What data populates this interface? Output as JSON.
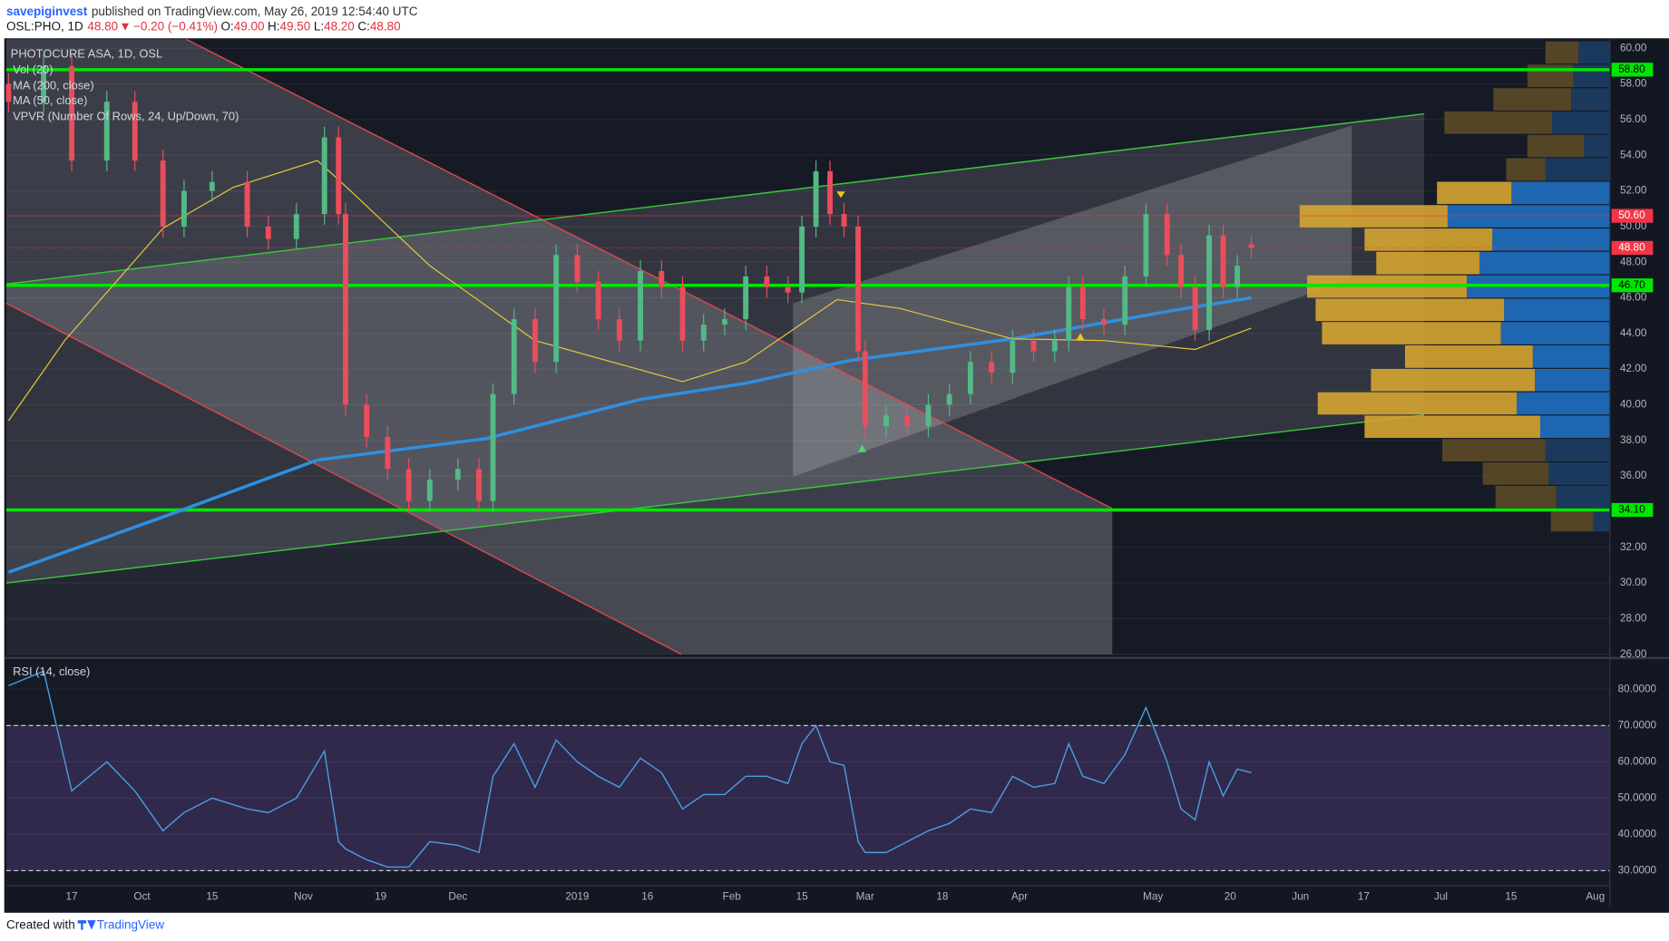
{
  "header": {
    "user": "savepiginvest",
    "published": "published on TradingView.com, May 26, 2019 12:54:40 UTC",
    "symbol": "OSL:PHO, 1D",
    "last": "48.80",
    "direction": "▼",
    "change": "−0.20 (−0.41%)",
    "ohlc": [
      [
        "O:",
        "49.00"
      ],
      [
        "H:",
        "49.50"
      ],
      [
        "L:",
        "48.20"
      ],
      [
        "C:",
        "48.80"
      ]
    ]
  },
  "footer": {
    "created": "Created with",
    "brand": "TradingView"
  },
  "chart_data": [
    {
      "type": "candlestick",
      "title": "PHOTOCURE ASA, 1D, OSL",
      "volume_label": "Vol (20)",
      "up_color": "#53b987",
      "down_color": "#eb4d5c",
      "xlim": [
        0,
        228
      ],
      "xticks": [
        {
          "value": 9,
          "label": "17"
        },
        {
          "value": 19,
          "label": "Oct"
        },
        {
          "value": 29,
          "label": "15"
        },
        {
          "value": 42,
          "label": "Nov"
        },
        {
          "value": 53,
          "label": "19"
        },
        {
          "value": 64,
          "label": "Dec"
        },
        {
          "value": 81,
          "label": "2019"
        },
        {
          "value": 91,
          "label": "16"
        },
        {
          "value": 103,
          "label": "Feb"
        },
        {
          "value": 113,
          "label": "15"
        },
        {
          "value": 122,
          "label": "Mar"
        },
        {
          "value": 133,
          "label": "18"
        },
        {
          "value": 144,
          "label": "Apr"
        },
        {
          "value": 163,
          "label": "May"
        },
        {
          "value": 174,
          "label": "20"
        },
        {
          "value": 184,
          "label": "Jun"
        },
        {
          "value": 193,
          "label": "17"
        },
        {
          "value": 204,
          "label": "Jul"
        },
        {
          "value": 214,
          "label": "15"
        },
        {
          "value": 226,
          "label": "Aug"
        }
      ],
      "ylim": [
        26,
        60.5
      ],
      "yticks": [
        {
          "value": 26,
          "label": "26.00"
        },
        {
          "value": 28,
          "label": "28.00"
        },
        {
          "value": 30,
          "label": "30.00"
        },
        {
          "value": 32,
          "label": "32.00"
        },
        {
          "value": 34,
          "label": "34.00"
        },
        {
          "value": 36,
          "label": "36.00"
        },
        {
          "value": 38,
          "label": "38.00"
        },
        {
          "value": 40,
          "label": "40.00"
        },
        {
          "value": 42,
          "label": "42.00"
        },
        {
          "value": 44,
          "label": "44.00"
        },
        {
          "value": 46,
          "label": "46.00"
        },
        {
          "value": 48,
          "label": "48.00"
        },
        {
          "value": 50,
          "label": "50.00"
        },
        {
          "value": 52,
          "label": "52.00"
        },
        {
          "value": 54,
          "label": "54.00"
        },
        {
          "value": 56,
          "label": "56.00"
        },
        {
          "value": 58,
          "label": "58.00"
        },
        {
          "value": 60,
          "label": "60.00"
        }
      ],
      "grid": true,
      "x": [
        0,
        5,
        9,
        14,
        18,
        22,
        25,
        29,
        34,
        37,
        41,
        45,
        47,
        48,
        51,
        54,
        57,
        60,
        64,
        67,
        69,
        72,
        75,
        78,
        81,
        84,
        87,
        90,
        93,
        96,
        99,
        102,
        105,
        108,
        111,
        113,
        115,
        117,
        119,
        121,
        122,
        125,
        128,
        131,
        134,
        137,
        140,
        143,
        146,
        149,
        151,
        153,
        156,
        159,
        162,
        165,
        167,
        169,
        171,
        173,
        175,
        177
      ],
      "open": [
        58,
        57,
        59,
        53.7,
        57,
        53.7,
        50,
        52,
        52.5,
        50,
        49.3,
        50.7,
        55,
        50.7,
        40,
        38.2,
        36.4,
        34.6,
        35.8,
        36.4,
        34.6,
        40.6,
        44.8,
        42.4,
        48.4,
        46.9,
        44.8,
        43.6,
        47.5,
        46.6,
        43.6,
        44.5,
        44.8,
        47.2,
        46.6,
        46.3,
        50,
        53.1,
        50.7,
        50,
        43,
        38.8,
        39.4,
        38.8,
        40,
        40.6,
        42.4,
        41.8,
        43.6,
        43,
        43.6,
        46.6,
        44.8,
        44.5,
        47.2,
        50.7,
        48.4,
        46.6,
        44.2,
        49.5,
        46.6,
        49
      ],
      "high": [
        58.6,
        59.6,
        59.6,
        57.6,
        57.6,
        54.3,
        52.6,
        53.1,
        53.1,
        50.6,
        51.3,
        55.6,
        55.6,
        51.3,
        40.6,
        38.8,
        37,
        36.4,
        37,
        37,
        41.2,
        45.4,
        45.4,
        49,
        49,
        47.5,
        45.4,
        48.1,
        48.1,
        47.2,
        45.1,
        45.4,
        47.8,
        47.8,
        47.2,
        50.6,
        53.7,
        53.7,
        51.3,
        50.6,
        43.6,
        40,
        40,
        40.6,
        41.2,
        43,
        43,
        44.2,
        44.2,
        44.2,
        47.2,
        47.2,
        45.4,
        47.8,
        51.3,
        51.3,
        49,
        47.2,
        50.1,
        50.1,
        48.4,
        49.5
      ],
      "low": [
        56.4,
        56.4,
        53.1,
        53.1,
        53.1,
        49.4,
        49.4,
        51.4,
        49.4,
        48.7,
        48.7,
        50.1,
        50.1,
        39.4,
        37.6,
        35.8,
        34,
        34,
        35.2,
        34,
        34,
        40,
        41.8,
        41.8,
        46.3,
        44.2,
        43,
        43,
        46,
        43,
        43,
        43.9,
        44.2,
        46,
        45.7,
        45.7,
        49.4,
        50.1,
        49.4,
        42.4,
        38.2,
        38.2,
        38.2,
        38.2,
        39.4,
        40,
        41.2,
        41.2,
        42.4,
        42.4,
        43,
        44.2,
        43.9,
        43.9,
        46.6,
        47.8,
        46,
        43.6,
        43.6,
        46,
        46,
        48.2
      ],
      "close": [
        57,
        59,
        53.7,
        57,
        53.7,
        50,
        52,
        52.5,
        50,
        49.3,
        50.7,
        55,
        50.7,
        40,
        38.2,
        36.4,
        34.6,
        35.8,
        36.4,
        34.6,
        40.6,
        44.8,
        42.4,
        48.4,
        46.9,
        44.8,
        43.6,
        47.5,
        46.6,
        43.6,
        44.5,
        44.8,
        47.2,
        46.6,
        46.3,
        50,
        53.1,
        50.7,
        50,
        43,
        38.8,
        39.4,
        38.8,
        40,
        40.6,
        42.4,
        41.8,
        43.6,
        43,
        43.6,
        46.6,
        44.8,
        44.5,
        47.2,
        50.7,
        48.4,
        46.6,
        44.2,
        49.5,
        46.6,
        47.8,
        48.8
      ],
      "series": [
        {
          "name": "MA (200, close)",
          "color": "#2f8fe0",
          "width": 3,
          "x": [
            0,
            22,
            44,
            68,
            90,
            105,
            120,
            143,
            166,
            177
          ],
          "values": [
            30.6,
            33.7,
            36.9,
            38.1,
            40.3,
            41.2,
            42.5,
            43.7,
            45.3,
            46
          ]
        },
        {
          "name": "MA (50, close)",
          "color": "#e8c93a",
          "width": 1,
          "x": [
            0,
            8,
            22,
            32,
            44,
            49,
            60,
            75,
            96,
            105,
            118,
            127,
            143,
            156,
            169,
            177
          ],
          "values": [
            39.1,
            43.6,
            49.9,
            52.2,
            53.7,
            51.9,
            47.8,
            43.6,
            41.3,
            42.4,
            45.9,
            45.4,
            43.7,
            43.6,
            43.1,
            44.3
          ]
        }
      ],
      "levels": [
        {
          "value": 58.8,
          "label": "58.80",
          "color": "#00e600",
          "style": "solid"
        },
        {
          "value": 50.6,
          "label": "50.60",
          "color": "#f23645",
          "style": "thin"
        },
        {
          "value": 48.8,
          "label": "48.80",
          "color": "#f23645",
          "style": "dotted"
        },
        {
          "value": 46.7,
          "label": "46.70",
          "color": "#00e600",
          "style": "solid"
        },
        {
          "value": 34.1,
          "label": "34.10",
          "color": "#00e600",
          "style": "solid"
        }
      ],
      "volume_profile": {
        "name": "VPVR (Number Of Rows, 24, Up/Down, 70)",
        "bins": [
          60.42,
          59.11,
          57.79,
          56.48,
          55.17,
          53.86,
          52.54,
          51.23,
          49.92,
          48.61,
          47.29,
          45.98,
          44.67,
          43.36,
          42.04,
          40.73,
          39.42,
          38.11,
          36.79,
          35.48,
          34.17,
          32.86
        ],
        "up": [
          29,
          34,
          36,
          54,
          24,
          60,
          92,
          152,
          110,
          122,
          134,
          99,
          102,
          72,
          70,
          87,
          65,
          60,
          57,
          50,
          15
        ],
        "down": [
          31,
          43,
          73,
          101,
          53,
          37,
          70,
          139,
          120,
          97,
          150,
          177,
          168,
          120,
          154,
          187,
          165,
          97,
          62,
          57,
          40
        ],
        "highlight_rows": [
          6,
          16
        ],
        "up_color": "#1f6fc0",
        "down_color": "#d6a531",
        "faded_up_color": "#1b3d63",
        "faded_down_color": "#5b4a28"
      }
    },
    {
      "type": "line",
      "xlim": [
        0,
        228
      ],
      "ylim": [
        26,
        87.6
      ],
      "yticks": [
        {
          "value": 30,
          "label": "30.0000"
        },
        {
          "value": 40,
          "label": "40.0000"
        },
        {
          "value": 50,
          "label": "50.0000"
        },
        {
          "value": 60,
          "label": "60.0000"
        },
        {
          "value": 70,
          "label": "70.0000"
        },
        {
          "value": 80,
          "label": "80.0000"
        }
      ],
      "band": [
        30,
        70
      ],
      "band_color": "#7e57c2",
      "x": [
        0,
        5,
        9,
        14,
        18,
        22,
        25,
        29,
        34,
        37,
        41,
        45,
        47,
        48,
        51,
        54,
        57,
        60,
        64,
        67,
        69,
        72,
        75,
        78,
        81,
        84,
        87,
        90,
        93,
        96,
        99,
        102,
        105,
        108,
        111,
        113,
        115,
        117,
        119,
        121,
        122,
        125,
        128,
        131,
        134,
        137,
        140,
        143,
        146,
        149,
        151,
        153,
        156,
        159,
        162,
        165,
        167,
        169,
        171,
        173,
        175,
        177
      ],
      "series": [
        {
          "name": "RSI (14, close)",
          "color": "#4a9ee0",
          "values": [
            81,
            85,
            52,
            60,
            52,
            41,
            46,
            50,
            47,
            46,
            50,
            63,
            38,
            36,
            33,
            31,
            31,
            38,
            37,
            35,
            56,
            65,
            53,
            66,
            60,
            56,
            53,
            61,
            57,
            47,
            51,
            51,
            56,
            56,
            54,
            65,
            70,
            60,
            59,
            38,
            35,
            35,
            38,
            41,
            43,
            47,
            46,
            56,
            53,
            54,
            65,
            56,
            54,
            62,
            75,
            60,
            47,
            44,
            60,
            50.6,
            58,
            57
          ]
        }
      ]
    }
  ]
}
